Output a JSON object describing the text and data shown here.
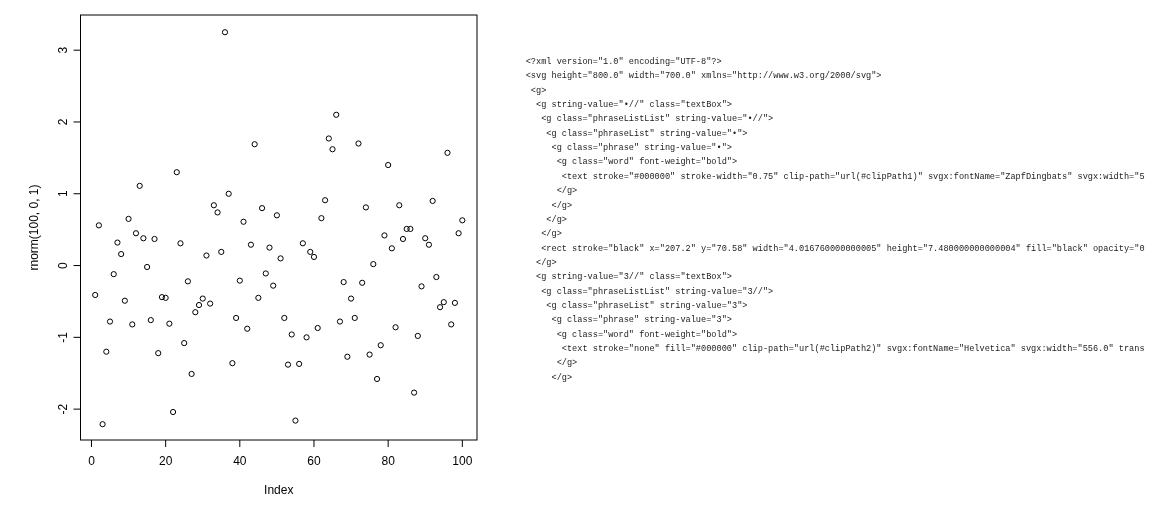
{
  "chart_data": [
    {
      "type": "scatter",
      "xlabel": "Index",
      "ylabel": "rnorm(100, 0, 1)",
      "x": [
        1,
        2,
        3,
        4,
        5,
        6,
        7,
        8,
        9,
        10,
        11,
        12,
        13,
        14,
        15,
        16,
        17,
        18,
        19,
        20,
        21,
        22,
        23,
        24,
        25,
        26,
        27,
        28,
        29,
        30,
        31,
        32,
        33,
        34,
        35,
        36,
        37,
        38,
        39,
        40,
        41,
        42,
        43,
        44,
        45,
        46,
        47,
        48,
        49,
        50,
        51,
        52,
        53,
        54,
        55,
        56,
        57,
        58,
        59,
        60,
        61,
        62,
        63,
        64,
        65,
        66,
        67,
        68,
        69,
        70,
        71,
        72,
        73,
        74,
        75,
        76,
        77,
        78,
        79,
        80,
        81,
        82,
        83,
        84,
        85,
        86,
        87,
        88,
        89,
        90,
        91,
        92,
        93,
        94,
        95,
        96,
        97,
        98,
        99,
        100
      ],
      "values": [
        -0.41,
        0.56,
        -2.21,
        -1.2,
        -0.78,
        -0.12,
        0.32,
        0.16,
        -0.49,
        0.65,
        -0.82,
        0.45,
        1.11,
        0.38,
        -0.02,
        -0.76,
        0.37,
        -1.22,
        -0.44,
        -0.45,
        -0.81,
        -2.04,
        1.3,
        0.31,
        -1.08,
        -0.22,
        -1.51,
        -0.65,
        -0.55,
        -0.46,
        0.14,
        -0.53,
        0.84,
        0.74,
        0.19,
        3.25,
        1.0,
        -1.36,
        -0.73,
        -0.21,
        0.61,
        -0.88,
        0.29,
        1.69,
        -0.45,
        0.8,
        -0.11,
        0.25,
        -0.28,
        0.7,
        0.1,
        -0.73,
        -1.38,
        -0.96,
        -2.16,
        -1.37,
        0.31,
        -1.0,
        0.19,
        0.12,
        -0.87,
        0.66,
        0.91,
        1.77,
        1.62,
        2.1,
        -0.78,
        -0.23,
        -1.27,
        -0.46,
        -0.73,
        1.7,
        -0.24,
        0.81,
        -1.24,
        0.02,
        -1.58,
        -1.11,
        0.42,
        1.4,
        0.24,
        -0.86,
        0.84,
        0.37,
        0.51,
        0.51,
        -1.77,
        -0.98,
        -0.29,
        0.38,
        0.29,
        0.9,
        -0.16,
        -0.58,
        -0.51,
        1.57,
        -0.82,
        -0.52,
        0.45,
        0.63
      ],
      "color": "#000000",
      "marker": "circle",
      "xlim": [
        -2.96,
        103.96
      ],
      "ylim": [
        -2.43,
        3.49
      ],
      "xticks": [
        0,
        20,
        40,
        60,
        80,
        100
      ],
      "yticks": [
        -2,
        -1,
        0,
        1,
        2,
        3
      ]
    },
    {
      "type": "other",
      "annotations": [
        "<?xml version=\"1.0\" encoding=\"UTF-8\"?>",
        "<svg height=\"800.0\" width=\"700.0\" xmlns=\"http://www.w3.org/2000/svg\">",
        " <g>",
        "  <g string-value=\"•//\" class=\"textBox\">",
        "   <g class=\"phraseListList\" string-value=\"•//\">",
        "    <g class=\"phraseList\" string-value=\"•\">",
        "     <g class=\"phrase\" string-value=\"•\">",
        "      <g class=\"word\" font-weight=\"bold\">",
        "       <text stroke=\"#000000\" stroke-width=\"0.75\" clip-path=\"url(#clipPath1)\" svgx:fontName=\"ZapfDingbats\" svgx:width=\"5",
        "      </g>",
        "     </g>",
        "    </g>",
        "   </g>",
        "   <rect stroke=\"black\" x=\"207.2\" y=\"70.58\" width=\"4.016760000000005\" height=\"7.480000000000004\" fill=\"black\" opacity=\"0",
        "  </g>",
        "  <g string-value=\"3//\" class=\"textBox\">",
        "   <g class=\"phraseListList\" string-value=\"3//\">",
        "    <g class=\"phraseList\" string-value=\"3\">",
        "     <g class=\"phrase\" string-value=\"3\">",
        "      <g class=\"word\" font-weight=\"bold\">",
        "       <text stroke=\"none\" fill=\"#000000\" clip-path=\"url(#clipPath2)\" svgx:fontName=\"Helvetica\" svgx:width=\"556.0\" trans",
        "      </g>",
        "     </g>"
      ]
    }
  ]
}
